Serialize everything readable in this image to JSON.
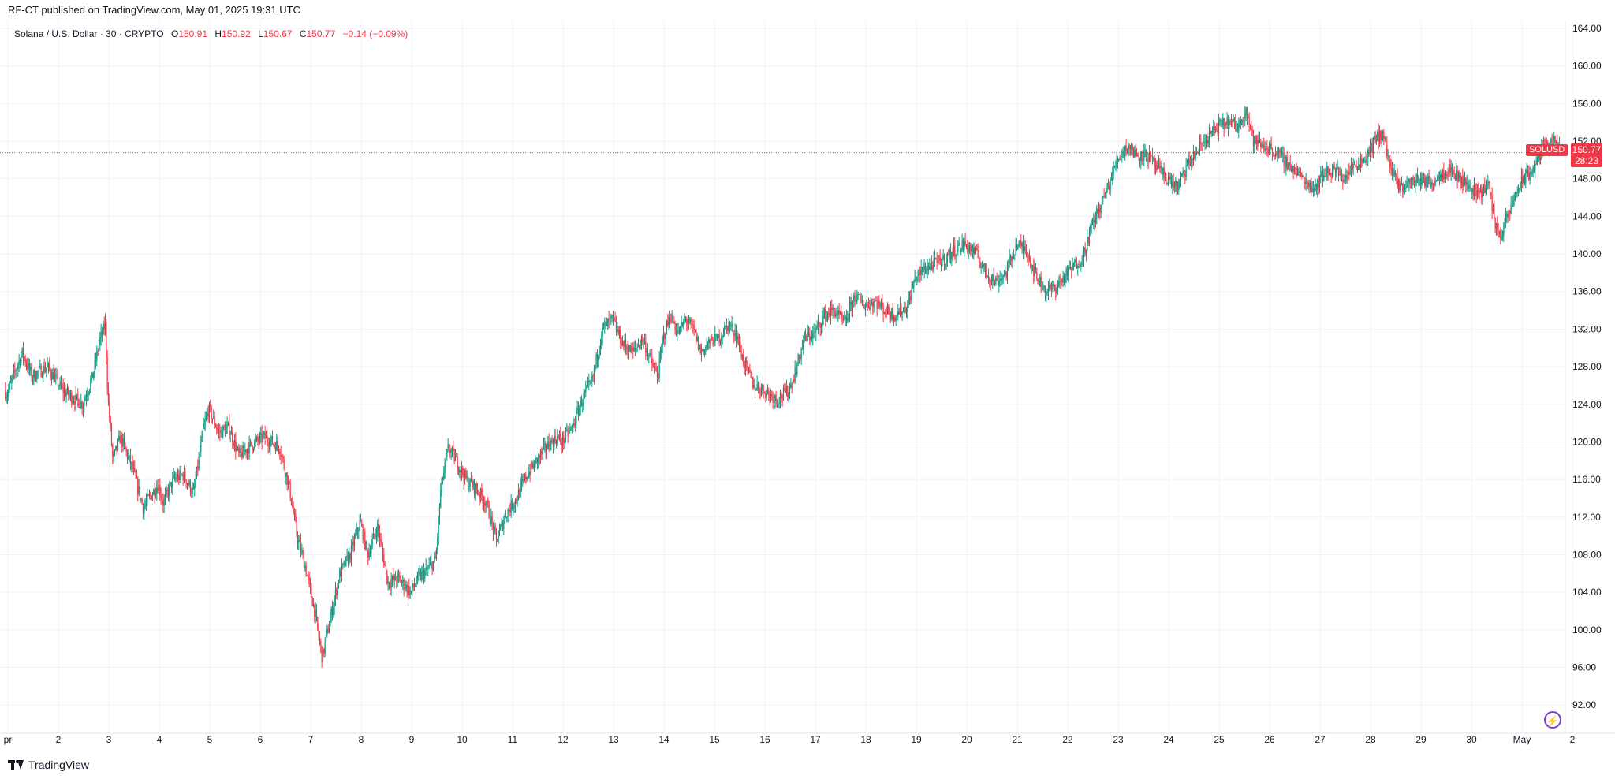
{
  "header": {
    "publisher_line": "RF-CT published on TradingView.com, May 01, 2025 19:31 UTC"
  },
  "legend": {
    "symbol_line": "Solana / U.S. Dollar · 30 · CRYPTO",
    "o_label": "O",
    "o_value": "150.91",
    "h_label": "H",
    "h_value": "150.92",
    "l_label": "L",
    "l_value": "150.67",
    "c_label": "C",
    "c_value": "150.77",
    "change": "−0.14 (−0.09%)"
  },
  "badges": {
    "symbol": "SOLUSD",
    "price": "150.77",
    "countdown": "28:23"
  },
  "footer": {
    "brand": "TradingView"
  },
  "colors": {
    "up": "#089981",
    "down": "#f23645",
    "grid": "#f0f3fa",
    "text": "#131722",
    "accent": "#7b3fd1"
  },
  "icons": {
    "bolt": "bolt-icon",
    "logo": "tradingview-logo-icon"
  },
  "chart_data": {
    "type": "candlestick",
    "symbol": "SOLUSD",
    "interval": "30",
    "ylim": [
      89,
      165
    ],
    "y_ticks": [
      "92.00",
      "96.00",
      "100.00",
      "104.00",
      "108.00",
      "112.00",
      "116.00",
      "120.00",
      "124.00",
      "128.00",
      "132.00",
      "136.00",
      "140.00",
      "144.00",
      "148.00",
      "152.00",
      "156.00",
      "160.00",
      "164.00"
    ],
    "x_ticks": [
      {
        "label": "pr",
        "day": 1
      },
      {
        "label": "2",
        "day": 2
      },
      {
        "label": "3",
        "day": 3
      },
      {
        "label": "4",
        "day": 4
      },
      {
        "label": "5",
        "day": 5
      },
      {
        "label": "6",
        "day": 6
      },
      {
        "label": "7",
        "day": 7
      },
      {
        "label": "8",
        "day": 8
      },
      {
        "label": "9",
        "day": 9
      },
      {
        "label": "10",
        "day": 10
      },
      {
        "label": "11",
        "day": 11
      },
      {
        "label": "12",
        "day": 12
      },
      {
        "label": "13",
        "day": 13
      },
      {
        "label": "14",
        "day": 14
      },
      {
        "label": "15",
        "day": 15
      },
      {
        "label": "16",
        "day": 16
      },
      {
        "label": "17",
        "day": 17
      },
      {
        "label": "18",
        "day": 18
      },
      {
        "label": "19",
        "day": 19
      },
      {
        "label": "20",
        "day": 20
      },
      {
        "label": "21",
        "day": 21
      },
      {
        "label": "22",
        "day": 22
      },
      {
        "label": "23",
        "day": 23
      },
      {
        "label": "24",
        "day": 24
      },
      {
        "label": "25",
        "day": 25
      },
      {
        "label": "26",
        "day": 26
      },
      {
        "label": "27",
        "day": 27
      },
      {
        "label": "28",
        "day": 28
      },
      {
        "label": "29",
        "day": 29
      },
      {
        "label": "30",
        "day": 30
      },
      {
        "label": "May",
        "day": 31
      },
      {
        "label": "2",
        "day": 32
      }
    ],
    "last_price": 150.77,
    "price_path": [
      [
        0.95,
        125.5
      ],
      [
        1.0,
        125.0
      ],
      [
        1.3,
        129.5
      ],
      [
        1.5,
        127.0
      ],
      [
        1.8,
        128.0
      ],
      [
        2.1,
        125.5
      ],
      [
        2.5,
        124.0
      ],
      [
        2.7,
        127.0
      ],
      [
        2.85,
        131.0
      ],
      [
        2.95,
        132.5
      ],
      [
        3.0,
        125.0
      ],
      [
        3.1,
        118.0
      ],
      [
        3.25,
        120.5
      ],
      [
        3.5,
        117.0
      ],
      [
        3.7,
        113.0
      ],
      [
        4.0,
        115.5
      ],
      [
        4.1,
        113.5
      ],
      [
        4.3,
        116.0
      ],
      [
        4.5,
        116.5
      ],
      [
        4.7,
        114.5
      ],
      [
        4.9,
        121.5
      ],
      [
        5.0,
        123.5
      ],
      [
        5.2,
        121.0
      ],
      [
        5.4,
        121.5
      ],
      [
        5.6,
        118.5
      ],
      [
        5.8,
        119.5
      ],
      [
        6.1,
        120.5
      ],
      [
        6.4,
        119.5
      ],
      [
        6.6,
        115.0
      ],
      [
        6.75,
        110.0
      ],
      [
        6.9,
        107.0
      ],
      [
        7.1,
        102.0
      ],
      [
        7.25,
        97.0
      ],
      [
        7.4,
        101.0
      ],
      [
        7.6,
        106.0
      ],
      [
        7.8,
        108.0
      ],
      [
        8.0,
        111.5
      ],
      [
        8.15,
        108.0
      ],
      [
        8.35,
        111.0
      ],
      [
        8.55,
        105.0
      ],
      [
        8.75,
        105.5
      ],
      [
        9.0,
        104.0
      ],
      [
        9.15,
        105.5
      ],
      [
        9.35,
        106.5
      ],
      [
        9.5,
        107.5
      ],
      [
        9.6,
        115.0
      ],
      [
        9.75,
        119.5
      ],
      [
        9.9,
        118.0
      ],
      [
        10.1,
        116.0
      ],
      [
        10.3,
        115.0
      ],
      [
        10.5,
        113.5
      ],
      [
        10.7,
        109.5
      ],
      [
        10.9,
        112.5
      ],
      [
        11.1,
        114.0
      ],
      [
        11.3,
        116.5
      ],
      [
        11.5,
        118.0
      ],
      [
        11.7,
        119.5
      ],
      [
        11.9,
        120.5
      ],
      [
        12.0,
        120.0
      ],
      [
        12.2,
        121.5
      ],
      [
        12.4,
        124.5
      ],
      [
        12.6,
        126.5
      ],
      [
        12.8,
        132.0
      ],
      [
        13.0,
        133.0
      ],
      [
        13.2,
        130.5
      ],
      [
        13.4,
        129.5
      ],
      [
        13.6,
        131.0
      ],
      [
        13.8,
        128.0
      ],
      [
        13.9,
        127.0
      ],
      [
        14.0,
        131.0
      ],
      [
        14.15,
        133.5
      ],
      [
        14.3,
        131.5
      ],
      [
        14.45,
        133.0
      ],
      [
        14.6,
        132.0
      ],
      [
        14.75,
        129.5
      ],
      [
        14.9,
        130.5
      ],
      [
        15.1,
        131.0
      ],
      [
        15.3,
        132.5
      ],
      [
        15.45,
        131.5
      ],
      [
        15.6,
        128.5
      ],
      [
        15.8,
        126.0
      ],
      [
        16.0,
        125.5
      ],
      [
        16.25,
        124.5
      ],
      [
        16.5,
        125.5
      ],
      [
        16.65,
        128.0
      ],
      [
        16.8,
        131.0
      ],
      [
        17.0,
        131.5
      ],
      [
        17.2,
        133.5
      ],
      [
        17.4,
        134.0
      ],
      [
        17.6,
        132.5
      ],
      [
        17.8,
        135.5
      ],
      [
        18.0,
        134.5
      ],
      [
        18.2,
        135.0
      ],
      [
        18.4,
        134.0
      ],
      [
        18.6,
        133.5
      ],
      [
        18.85,
        134.5
      ],
      [
        19.0,
        137.5
      ],
      [
        19.2,
        138.5
      ],
      [
        19.4,
        139.0
      ],
      [
        19.6,
        139.5
      ],
      [
        19.8,
        140.5
      ],
      [
        20.0,
        141.0
      ],
      [
        20.2,
        140.0
      ],
      [
        20.4,
        138.0
      ],
      [
        20.6,
        137.0
      ],
      [
        20.8,
        138.0
      ],
      [
        21.0,
        141.0
      ],
      [
        21.2,
        140.5
      ],
      [
        21.4,
        137.5
      ],
      [
        21.6,
        136.0
      ],
      [
        21.8,
        136.5
      ],
      [
        21.95,
        137.5
      ],
      [
        22.1,
        138.5
      ],
      [
        22.3,
        139.5
      ],
      [
        22.5,
        143.0
      ],
      [
        22.7,
        145.5
      ],
      [
        22.85,
        147.5
      ],
      [
        23.0,
        150.0
      ],
      [
        23.2,
        151.5
      ],
      [
        23.4,
        150.5
      ],
      [
        23.6,
        150.5
      ],
      [
        23.8,
        149.0
      ],
      [
        24.0,
        148.0
      ],
      [
        24.2,
        147.0
      ],
      [
        24.4,
        149.5
      ],
      [
        24.6,
        151.0
      ],
      [
        24.8,
        152.5
      ],
      [
        25.0,
        153.5
      ],
      [
        25.2,
        154.0
      ],
      [
        25.4,
        153.5
      ],
      [
        25.55,
        155.5
      ],
      [
        25.7,
        152.0
      ],
      [
        25.9,
        151.5
      ],
      [
        26.1,
        151.0
      ],
      [
        26.3,
        150.0
      ],
      [
        26.5,
        149.0
      ],
      [
        26.7,
        148.0
      ],
      [
        26.9,
        147.0
      ],
      [
        27.1,
        148.5
      ],
      [
        27.3,
        149.0
      ],
      [
        27.5,
        148.0
      ],
      [
        27.7,
        149.5
      ],
      [
        27.9,
        150.0
      ],
      [
        28.1,
        152.0
      ],
      [
        28.25,
        153.0
      ],
      [
        28.45,
        148.5
      ],
      [
        28.6,
        147.0
      ],
      [
        28.8,
        147.5
      ],
      [
        29.0,
        148.0
      ],
      [
        29.2,
        147.5
      ],
      [
        29.4,
        148.5
      ],
      [
        29.6,
        149.0
      ],
      [
        29.8,
        148.0
      ],
      [
        30.0,
        147.0
      ],
      [
        30.2,
        146.5
      ],
      [
        30.35,
        147.5
      ],
      [
        30.5,
        143.0
      ],
      [
        30.6,
        142.0
      ],
      [
        30.75,
        144.0
      ],
      [
        30.9,
        146.5
      ],
      [
        31.05,
        148.0
      ],
      [
        31.25,
        149.0
      ],
      [
        31.4,
        151.0
      ],
      [
        31.6,
        152.5
      ],
      [
        31.75,
        150.77
      ]
    ]
  }
}
